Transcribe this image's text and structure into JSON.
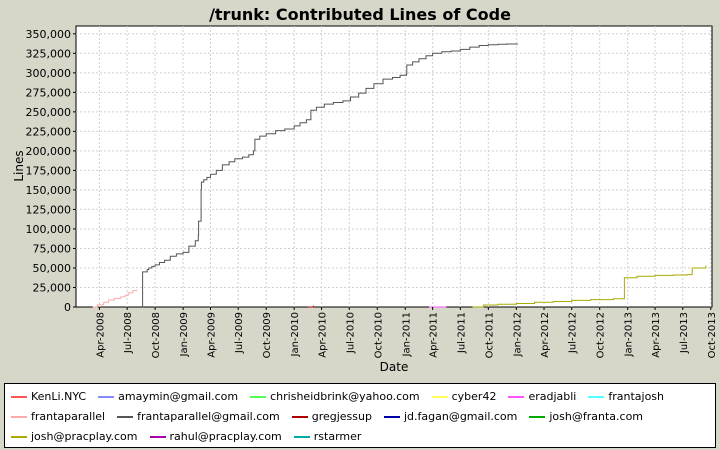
{
  "chart_data": {
    "type": "line",
    "title": "/trunk: Contributed Lines of Code",
    "xlabel": "Date",
    "ylabel": "Lines",
    "ylim": [
      0,
      360000
    ],
    "xlim": [
      "2008-01-15",
      "2013-10-05"
    ],
    "grid": true,
    "legend_position": "bottom",
    "x_ticks": [
      "Apr-2008",
      "Jul-2008",
      "Oct-2008",
      "Jan-2009",
      "Apr-2009",
      "Jul-2009",
      "Oct-2009",
      "Jan-2010",
      "Apr-2010",
      "Jul-2010",
      "Oct-2010",
      "Jan-2011",
      "Apr-2011",
      "Jul-2011",
      "Oct-2011",
      "Jan-2012",
      "Apr-2012",
      "Jul-2012",
      "Oct-2012",
      "Jan-2013",
      "Apr-2013",
      "Jul-2013",
      "Oct-2013"
    ],
    "x_tick_dates": [
      "2008-04-01",
      "2008-07-01",
      "2008-10-01",
      "2009-01-01",
      "2009-04-01",
      "2009-07-01",
      "2009-10-01",
      "2010-01-01",
      "2010-04-01",
      "2010-07-01",
      "2010-10-01",
      "2011-01-01",
      "2011-04-01",
      "2011-07-01",
      "2011-10-01",
      "2012-01-01",
      "2012-04-01",
      "2012-07-01",
      "2012-10-01",
      "2013-01-01",
      "2013-04-01",
      "2013-07-01",
      "2013-10-01"
    ],
    "y_ticks": [
      0,
      25000,
      50000,
      75000,
      100000,
      125000,
      150000,
      175000,
      200000,
      225000,
      250000,
      275000,
      300000,
      325000,
      350000
    ],
    "y_tick_labels": [
      "0",
      "25,000",
      "50,000",
      "75,000",
      "100,000",
      "125,000",
      "150,000",
      "175,000",
      "200,000",
      "225,000",
      "250,000",
      "275,000",
      "300,000",
      "325,000",
      "350,000"
    ],
    "series": [
      {
        "name": "KenLi.NYC",
        "color": "#ff5555",
        "x": [],
        "y": []
      },
      {
        "name": "amaymin@gmail.com",
        "color": "#8888ff",
        "x": [],
        "y": []
      },
      {
        "name": "chrisheidbrink@yahoo.com",
        "color": "#55ff55",
        "x": [],
        "y": []
      },
      {
        "name": "cyber42",
        "color": "#ffff55",
        "x": [],
        "y": []
      },
      {
        "name": "eradjabli",
        "color": "#ff55ff",
        "x": [
          "2011-03-20",
          "2011-05-15"
        ],
        "y": [
          0,
          100
        ]
      },
      {
        "name": "frantajosh",
        "color": "#55ffff",
        "x": [],
        "y": []
      },
      {
        "name": "frantaparallel",
        "color": "#ffaaaa",
        "x": [
          "2008-03-10",
          "2008-03-25",
          "2008-04-15",
          "2008-05-01",
          "2008-05-20",
          "2008-06-10",
          "2008-06-25",
          "2008-07-05",
          "2008-07-20",
          "2008-08-01"
        ],
        "y": [
          0,
          3000,
          6000,
          9000,
          11000,
          13000,
          15000,
          18000,
          21000,
          22000
        ]
      },
      {
        "name": "frantaparallel@gmail.com",
        "color": "#555555",
        "x": [
          "2008-08-20",
          "2008-08-21",
          "2008-09-05",
          "2008-09-10",
          "2008-09-20",
          "2008-10-01",
          "2008-10-15",
          "2008-11-01",
          "2008-11-20",
          "2008-12-10",
          "2009-01-01",
          "2009-01-20",
          "2009-02-10",
          "2009-02-20",
          "2009-02-21",
          "2009-03-01",
          "2009-03-02",
          "2009-03-10",
          "2009-03-20",
          "2009-04-01",
          "2009-04-20",
          "2009-05-10",
          "2009-06-01",
          "2009-06-20",
          "2009-07-15",
          "2009-08-05",
          "2009-08-20",
          "2009-08-25",
          "2009-09-10",
          "2009-10-01",
          "2009-11-01",
          "2009-12-01",
          "2010-01-01",
          "2010-01-20",
          "2010-02-10",
          "2010-02-25",
          "2010-03-15",
          "2010-04-10",
          "2010-05-10",
          "2010-06-10",
          "2010-07-05",
          "2010-08-01",
          "2010-08-25",
          "2010-09-20",
          "2010-10-20",
          "2010-11-20",
          "2010-12-15",
          "2011-01-05",
          "2011-01-06",
          "2011-01-25",
          "2011-02-15",
          "2011-03-10",
          "2011-04-01",
          "2011-05-01",
          "2011-06-01",
          "2011-07-01",
          "2011-08-01",
          "2011-09-01",
          "2011-10-01",
          "2011-11-01",
          "2011-12-01",
          "2012-01-05"
        ],
        "y": [
          0,
          45000,
          48000,
          50000,
          52000,
          54000,
          57000,
          60000,
          65000,
          68000,
          70000,
          78000,
          85000,
          92000,
          110000,
          150000,
          160000,
          163000,
          166000,
          170000,
          175000,
          182000,
          186000,
          190000,
          192000,
          195000,
          200000,
          215000,
          219000,
          222000,
          226000,
          228000,
          232000,
          236000,
          240000,
          252000,
          256000,
          260000,
          262000,
          264000,
          269000,
          274000,
          280000,
          286000,
          292000,
          294000,
          297000,
          299000,
          310000,
          314000,
          318000,
          322000,
          325000,
          327000,
          328000,
          330000,
          333000,
          335000,
          336000,
          336500,
          337000,
          337500
        ]
      },
      {
        "name": "gregjessup",
        "color": "#aa0000",
        "x": [
          "2010-02-15",
          "2010-03-05"
        ],
        "y": [
          0,
          1500
        ]
      },
      {
        "name": "jd.fagan@gmail.com",
        "color": "#0000aa",
        "x": [],
        "y": []
      },
      {
        "name": "josh@franta.com",
        "color": "#00aa00",
        "x": [],
        "y": []
      },
      {
        "name": "josh@pracplay.com",
        "color": "#aaaa00",
        "x": [
          "2011-08-10",
          "2011-09-15",
          "2011-11-01",
          "2012-01-01",
          "2012-03-01",
          "2012-05-01",
          "2012-07-01",
          "2012-09-01",
          "2012-11-15",
          "2012-11-25",
          "2012-12-20",
          "2012-12-21",
          "2013-02-01",
          "2013-04-01",
          "2013-06-01",
          "2013-07-15",
          "2013-08-01",
          "2013-09-15"
        ],
        "y": [
          0,
          2500,
          3500,
          4500,
          6000,
          7000,
          8500,
          9500,
          10500,
          10500,
          10500,
          37500,
          39500,
          40500,
          41000,
          41500,
          50000,
          53000
        ]
      },
      {
        "name": "rahul@pracplay.com",
        "color": "#aa00aa",
        "x": [],
        "y": []
      },
      {
        "name": "rstarmer",
        "color": "#00aaaa",
        "x": [],
        "y": []
      }
    ]
  }
}
